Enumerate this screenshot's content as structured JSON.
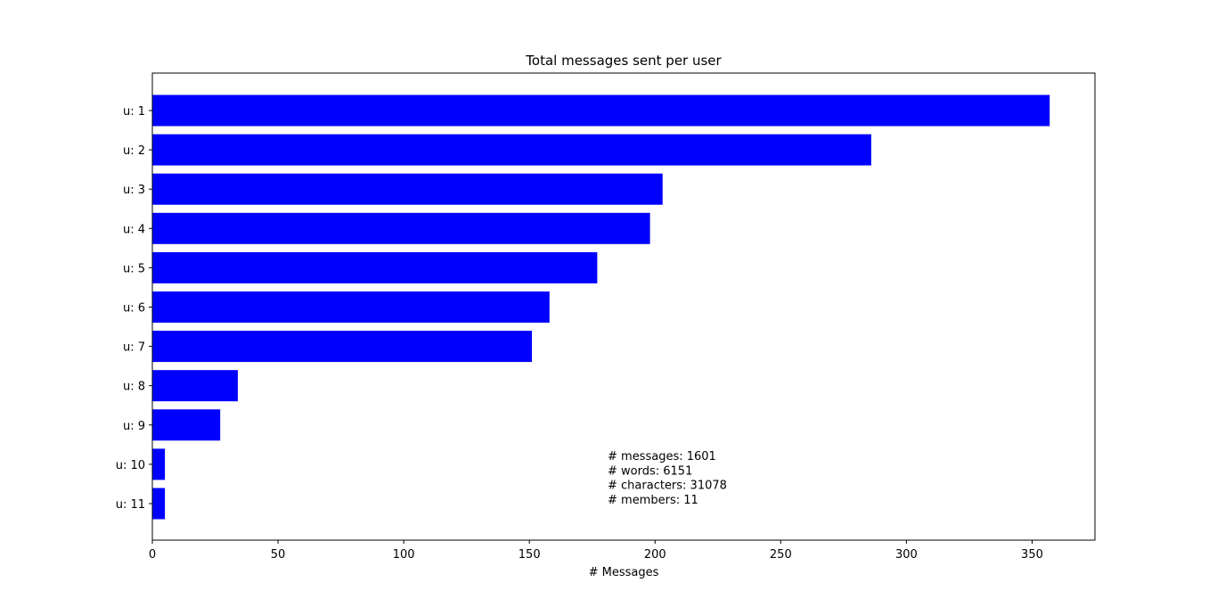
{
  "chart_data": {
    "type": "bar",
    "orientation": "horizontal",
    "title": "Total messages sent per user",
    "xlabel": "# Messages",
    "ylabel": "",
    "xlim": [
      0,
      375
    ],
    "xticks": [
      0,
      50,
      100,
      150,
      200,
      250,
      300,
      350
    ],
    "categories": [
      "u: 1",
      "u: 2",
      "u: 3",
      "u: 4",
      "u: 5",
      "u: 6",
      "u: 7",
      "u: 8",
      "u: 9",
      "u: 10",
      "u: 11"
    ],
    "values": [
      357,
      286,
      203,
      198,
      177,
      158,
      151,
      34,
      27,
      5,
      5
    ],
    "bar_color": "#0000ff",
    "grid": false,
    "annotation": [
      "# messages: 1601",
      "# words: 6151",
      "# characters: 31078",
      "# members: 11"
    ]
  }
}
